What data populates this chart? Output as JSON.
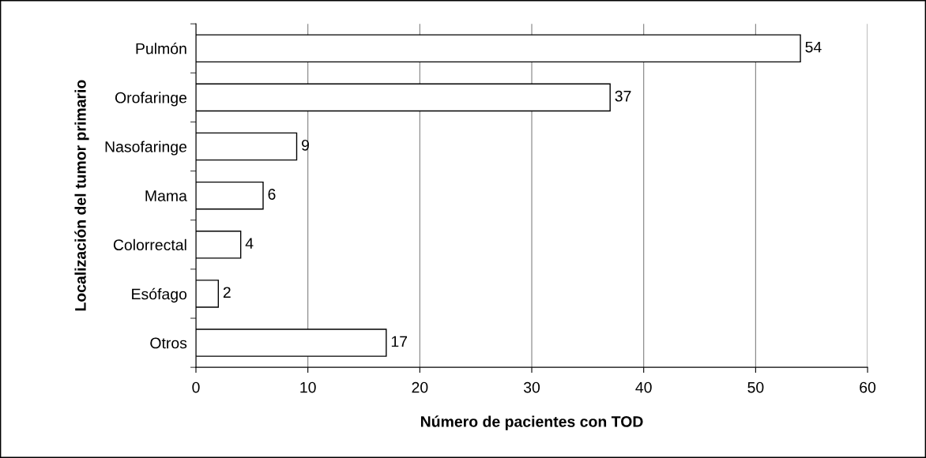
{
  "chart_data": {
    "type": "bar",
    "orientation": "horizontal",
    "categories": [
      "Pulmón",
      "Orofaringe",
      "Nasofaringe",
      "Mama",
      "Colorrectal",
      "Esófago",
      "Otros"
    ],
    "values": [
      54,
      37,
      9,
      6,
      4,
      2,
      17
    ],
    "color": "#ffffff",
    "xlabel": "Número de pacientes con TOD",
    "ylabel": "Localización del tumor primario",
    "xlim": [
      0,
      60
    ],
    "xticks": [
      0,
      10,
      20,
      30,
      40,
      50,
      60
    ],
    "grid": "x",
    "data_labels": true,
    "legend": false
  }
}
